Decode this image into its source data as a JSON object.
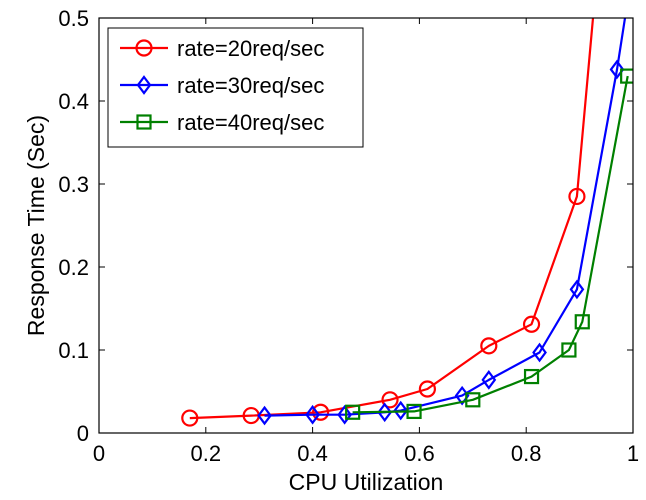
{
  "chart_data": {
    "type": "line",
    "title": "",
    "xlabel": "CPU Utilization",
    "ylabel": "Response Time (Sec)",
    "xlim": [
      0,
      1
    ],
    "ylim": [
      0,
      0.5
    ],
    "xticks": [
      0,
      0.2,
      0.4,
      0.6,
      0.8,
      1
    ],
    "xtick_labels": [
      "0",
      "0.2",
      "0.4",
      "0.6",
      "0.8",
      "1"
    ],
    "yticks": [
      0,
      0.1,
      0.2,
      0.3,
      0.4,
      0.5
    ],
    "ytick_labels": [
      "0",
      "0.1",
      "0.2",
      "0.3",
      "0.4",
      "0.5"
    ],
    "grid": false,
    "legend_position": "top-left",
    "series": [
      {
        "name": "rate=20req/sec",
        "color": "#ff0000",
        "marker": "circle",
        "x": [
          0.17,
          0.285,
          0.415,
          0.545,
          0.615,
          0.73,
          0.81,
          0.895,
          0.925
        ],
        "y": [
          0.018,
          0.021,
          0.025,
          0.04,
          0.053,
          0.105,
          0.131,
          0.285,
          0.5
        ],
        "marked": [
          true,
          true,
          true,
          true,
          true,
          true,
          true,
          true,
          false
        ]
      },
      {
        "name": "rate=30req/sec",
        "color": "#0000ff",
        "marker": "diamond",
        "x": [
          0.31,
          0.4,
          0.46,
          0.535,
          0.565,
          0.68,
          0.73,
          0.825,
          0.895,
          0.97,
          0.985
        ],
        "y": [
          0.021,
          0.022,
          0.022,
          0.025,
          0.027,
          0.045,
          0.064,
          0.097,
          0.173,
          0.438,
          0.5
        ],
        "marked": [
          true,
          true,
          true,
          true,
          true,
          true,
          true,
          true,
          true,
          true,
          false
        ]
      },
      {
        "name": "rate=40req/sec",
        "color": "#008000",
        "marker": "square",
        "x": [
          0.475,
          0.59,
          0.7,
          0.81,
          0.88,
          0.905,
          0.99
        ],
        "y": [
          0.025,
          0.026,
          0.04,
          0.068,
          0.1,
          0.134,
          0.43
        ],
        "marked": [
          true,
          true,
          true,
          true,
          true,
          true,
          true
        ]
      }
    ]
  }
}
